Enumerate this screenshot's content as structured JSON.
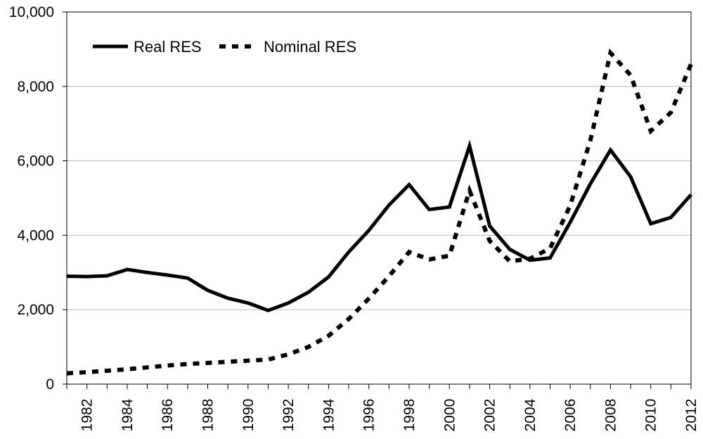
{
  "chart_data": {
    "type": "line",
    "title": "",
    "xlabel": "",
    "ylabel": "",
    "x": [
      1981,
      1982,
      1983,
      1984,
      1985,
      1986,
      1987,
      1988,
      1989,
      1990,
      1991,
      1992,
      1993,
      1994,
      1995,
      1996,
      1997,
      1998,
      1999,
      2000,
      2001,
      2002,
      2003,
      2004,
      2005,
      2006,
      2007,
      2008,
      2009,
      2010,
      2011,
      2012
    ],
    "x_tick_labels": [
      "1982",
      "1984",
      "1986",
      "1988",
      "1990",
      "1992",
      "1994",
      "1996",
      "1998",
      "2000",
      "2002",
      "2004",
      "2006",
      "2008",
      "2010",
      "2012"
    ],
    "y_tick_labels": [
      "0",
      "2,000",
      "4,000",
      "6,000",
      "8,000",
      "10,000"
    ],
    "xlim": [
      1981,
      2012
    ],
    "ylim": [
      0,
      10000
    ],
    "grid": true,
    "legend_position": "top-left",
    "series": [
      {
        "name": "Real RES",
        "style": "solid",
        "color": "#000000",
        "values": [
          2900,
          2890,
          2910,
          3080,
          3000,
          2930,
          2850,
          2520,
          2310,
          2180,
          1980,
          2180,
          2470,
          2880,
          3550,
          4130,
          4810,
          5360,
          4690,
          4760,
          6400,
          4250,
          3620,
          3330,
          3390,
          4350,
          5380,
          6290,
          5570,
          4310,
          4480,
          5090
        ]
      },
      {
        "name": "Nominal RES",
        "style": "dashed",
        "color": "#000000",
        "values": [
          290,
          320,
          360,
          400,
          450,
          500,
          540,
          570,
          600,
          630,
          660,
          800,
          1000,
          1300,
          1750,
          2300,
          2900,
          3550,
          3350,
          3450,
          5200,
          3850,
          3300,
          3370,
          3650,
          4800,
          6550,
          8900,
          8300,
          6800,
          7300,
          8600
        ]
      }
    ]
  }
}
